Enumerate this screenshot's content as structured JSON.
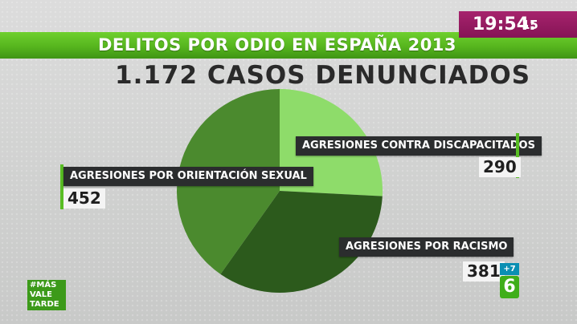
{
  "header": {
    "title": "DELITOS POR ODIO EN ESPAÑA 2013",
    "subtitle": "1.172 CASOS DENUNCIADOS"
  },
  "clock": {
    "time": "19:54:",
    "seconds": "15"
  },
  "hashtag": {
    "line1": "#MÁS",
    "line2": "VALE",
    "line3": "TARDE"
  },
  "channel": {
    "plus": "+7",
    "logo": "6"
  },
  "chart_data": {
    "type": "pie",
    "title": "DELITOS POR ODIO EN ESPAÑA 2013",
    "subtitle": "1.172 CASOS DENUNCIADOS",
    "categories": [
      "AGRESIONES CONTRA DISCAPACITADOS",
      "AGRESIONES POR RACISMO",
      "AGRESIONES POR ORIENTACIÓN SEXUAL"
    ],
    "values": [
      290,
      381,
      452
    ],
    "value_labels": [
      "290",
      "381",
      "452"
    ],
    "colors": [
      "#8edc6a",
      "#2c5a1c",
      "#4b8a2e"
    ]
  }
}
